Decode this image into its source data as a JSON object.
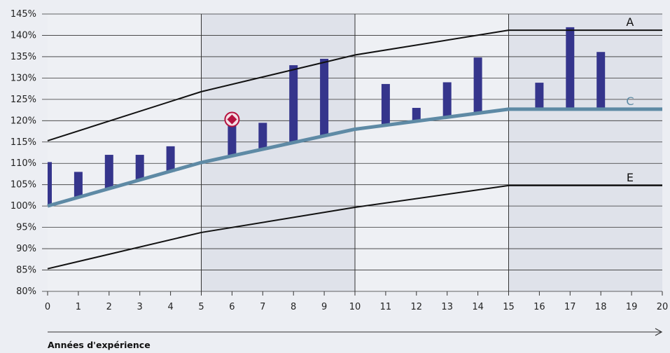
{
  "chart_data": {
    "type": "bar",
    "xlabel": "Années d'expérience",
    "ylabel": "",
    "xlim": [
      0,
      20
    ],
    "ylim": [
      80,
      145
    ],
    "x_ticks": [
      "0",
      "1",
      "2",
      "3",
      "4",
      "5",
      "6",
      "7",
      "8",
      "9",
      "10",
      "11",
      "12",
      "13",
      "14",
      "15",
      "16",
      "17",
      "18",
      "19",
      "20"
    ],
    "y_ticks": [
      "80%",
      "85%",
      "90%",
      "95%",
      "100%",
      "105%",
      "110%",
      "115%",
      "120%",
      "125%",
      "130%",
      "135%",
      "140%",
      "145%"
    ],
    "y_tick_values": [
      80,
      85,
      90,
      95,
      100,
      105,
      110,
      115,
      120,
      125,
      130,
      135,
      140,
      145
    ],
    "grid": "horizontal",
    "shaded_bands": [
      [
        5,
        10
      ],
      [
        15,
        20
      ]
    ],
    "lines": [
      {
        "name": "A",
        "color": "#111111",
        "points": [
          [
            0,
            115.3
          ],
          [
            5,
            126.8
          ],
          [
            10,
            135.4
          ],
          [
            15,
            141.2
          ],
          [
            20,
            141.2
          ]
        ]
      },
      {
        "name": "C",
        "color": "#5e8aa5",
        "points": [
          [
            0,
            100
          ],
          [
            5,
            110.2
          ],
          [
            10,
            118
          ],
          [
            15,
            122.7
          ],
          [
            20,
            122.7
          ]
        ]
      },
      {
        "name": "E",
        "color": "#111111",
        "points": [
          [
            0,
            85.3
          ],
          [
            5,
            93.8
          ],
          [
            10,
            99.7
          ],
          [
            15,
            104.8
          ],
          [
            20,
            104.8
          ]
        ]
      }
    ],
    "bars": [
      {
        "x": 0,
        "low": 100,
        "high": 110.3
      },
      {
        "x": 1,
        "low": 102,
        "high": 108
      },
      {
        "x": 2,
        "low": 104,
        "high": 112
      },
      {
        "x": 3,
        "low": 106,
        "high": 112
      },
      {
        "x": 4,
        "low": 108,
        "high": 114
      },
      {
        "x": 6,
        "low": 111.7,
        "high": 120.3
      },
      {
        "x": 7,
        "low": 113.5,
        "high": 119.5
      },
      {
        "x": 8,
        "low": 114.8,
        "high": 133
      },
      {
        "x": 9,
        "low": 116.3,
        "high": 134.5
      },
      {
        "x": 11,
        "low": 119,
        "high": 128.6
      },
      {
        "x": 12,
        "low": 120,
        "high": 123
      },
      {
        "x": 13,
        "low": 121,
        "high": 129
      },
      {
        "x": 14,
        "low": 121.7,
        "high": 134.8
      },
      {
        "x": 16,
        "low": 122.7,
        "high": 128.9
      },
      {
        "x": 17,
        "low": 122.7,
        "high": 141.9
      },
      {
        "x": 18,
        "low": 122.7,
        "high": 136.1
      }
    ],
    "bar_color": "#35358c",
    "marker": {
      "x": 6,
      "y": 120.3,
      "color": "#b5123f"
    }
  }
}
